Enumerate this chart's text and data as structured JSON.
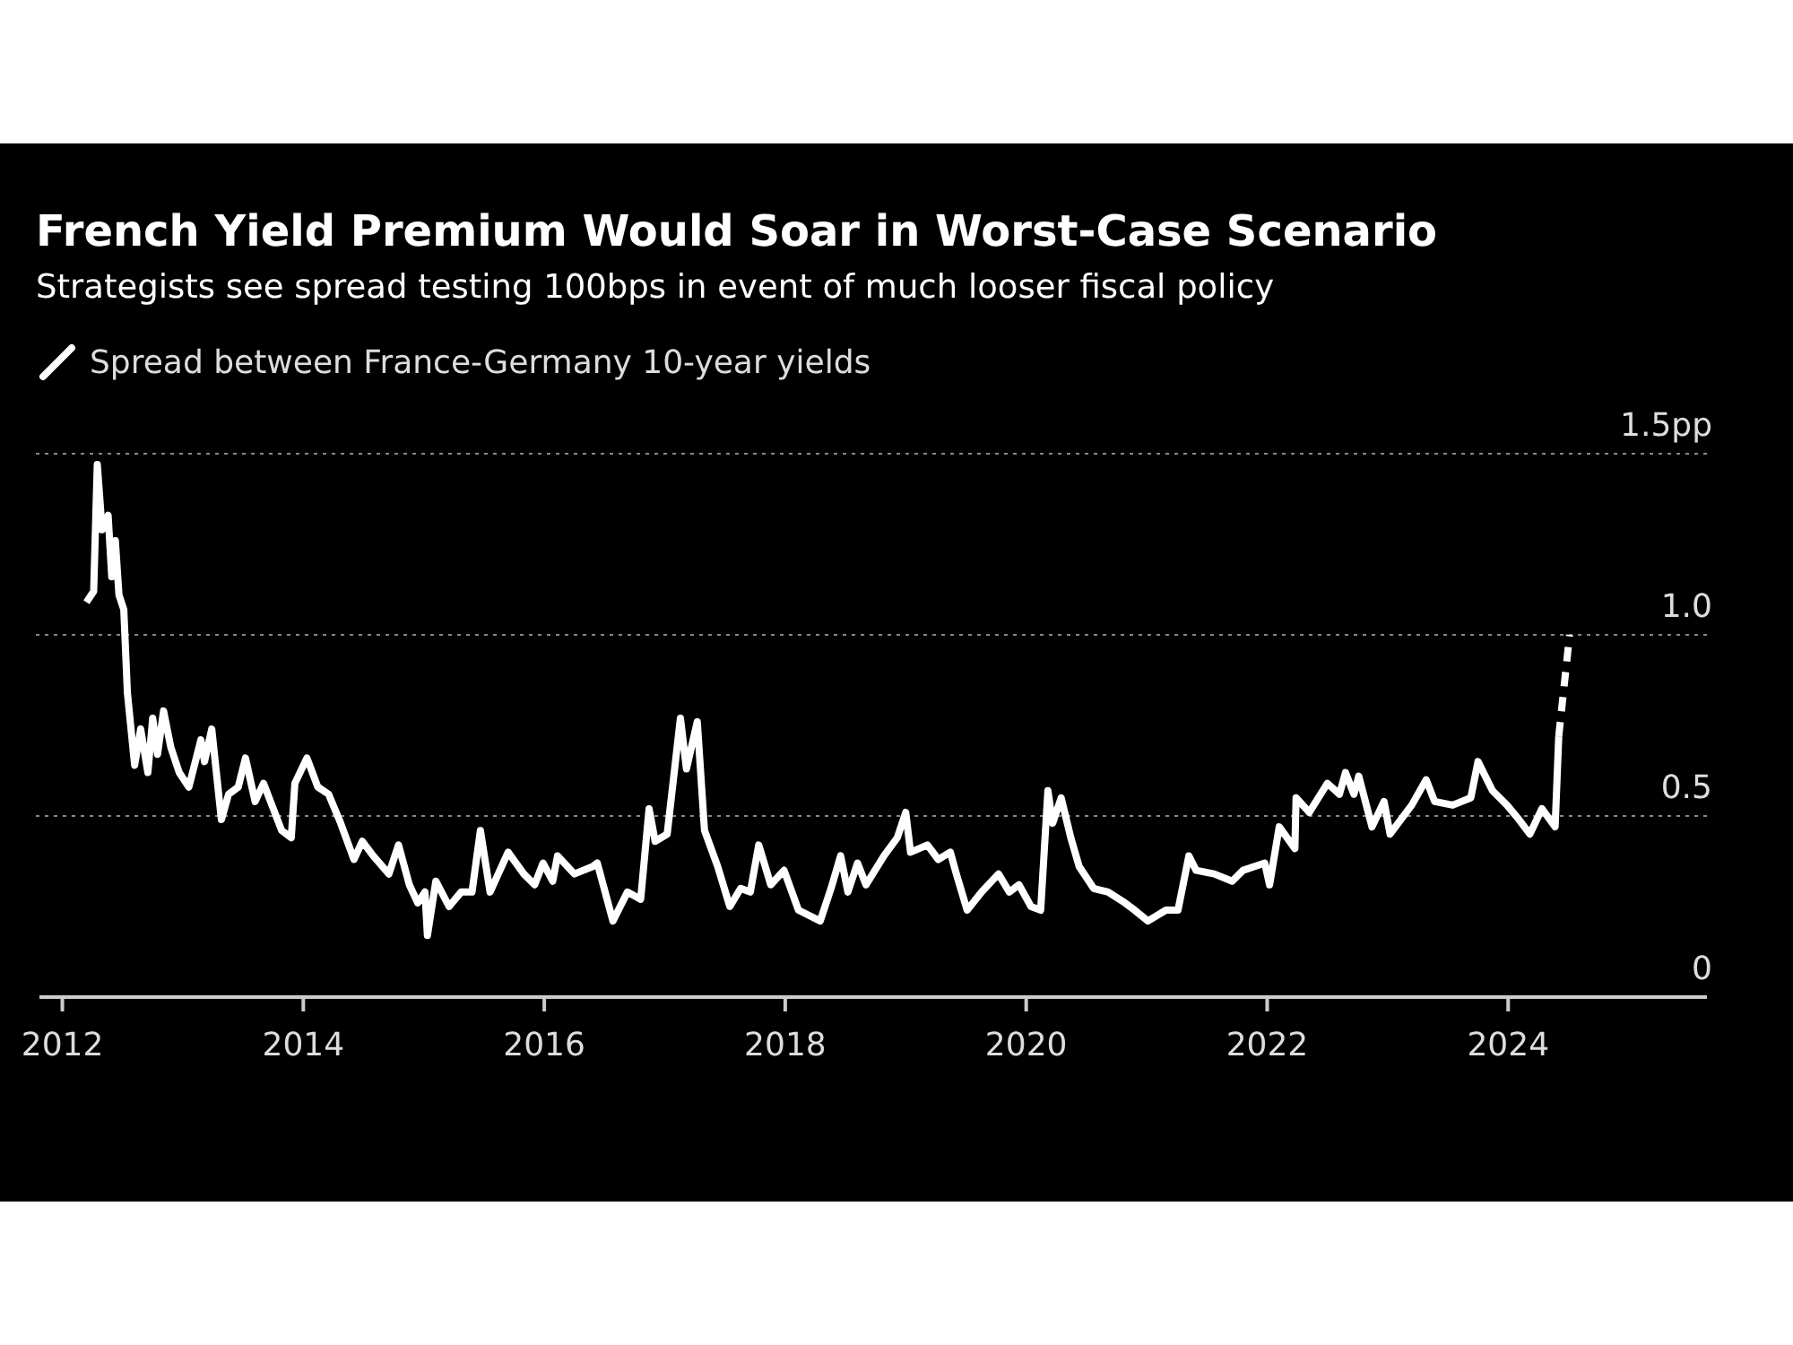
{
  "chart_data": {
    "type": "line",
    "title": "French Yield Premium Would Soar in Worst-Case Scenario",
    "subtitle": "Strategists see spread testing 100bps in event of much looser fiscal policy",
    "xlim": [
      2011.81,
      2025.65
    ],
    "xticks": [
      2012,
      2014,
      2016,
      2018,
      2020,
      2022,
      2024
    ],
    "ylim": [
      0,
      1.5
    ],
    "yticks": [
      0,
      0.5,
      {
        "value": 1,
        "label": "1.0"
      },
      {
        "value": 1.5,
        "label": "1.5pp"
      }
    ],
    "grid": "y",
    "legend": "top left",
    "series": [
      {
        "name": "Spread between France-Germany 10-year yields",
        "color": "#ffffff",
        "line_style": "solid",
        "x": [
          2012.2,
          2012.26,
          2012.29,
          2012.33,
          2012.38,
          2012.41,
          2012.44,
          2012.47,
          2012.51,
          2012.54,
          2012.6,
          2012.65,
          2012.71,
          2012.75,
          2012.79,
          2012.84,
          2012.9,
          2012.97,
          2013.05,
          2013.15,
          2013.18,
          2013.24,
          2013.32,
          2013.38,
          2013.46,
          2013.52,
          2013.6,
          2013.67,
          2013.82,
          2013.9,
          2013.93,
          2014.03,
          2014.12,
          2014.21,
          2014.31,
          2014.42,
          2014.49,
          2014.58,
          2014.71,
          2014.79,
          2014.88,
          2014.95,
          2015.01,
          2015.03,
          2015.1,
          2015.21,
          2015.31,
          2015.4,
          2015.47,
          2015.55,
          2015.7,
          2015.83,
          2015.92,
          2015.99,
          2016.07,
          2016.11,
          2016.25,
          2016.4,
          2016.44,
          2016.57,
          2016.69,
          2016.8,
          2016.87,
          2016.92,
          2017.02,
          2017.13,
          2017.18,
          2017.27,
          2017.33,
          2017.44,
          2017.54,
          2017.63,
          2017.71,
          2017.78,
          2017.88,
          2017.99,
          2018.11,
          2018.29,
          2018.38,
          2018.46,
          2018.52,
          2018.6,
          2018.67,
          2018.82,
          2018.93,
          2019.0,
          2019.04,
          2019.18,
          2019.27,
          2019.37,
          2019.42,
          2019.51,
          2019.63,
          2019.77,
          2019.86,
          2019.94,
          2020.04,
          2020.12,
          2020.18,
          2020.22,
          2020.29,
          2020.37,
          2020.44,
          2020.56,
          2020.68,
          2020.82,
          2020.9,
          2021.01,
          2021.16,
          2021.26,
          2021.35,
          2021.41,
          2021.56,
          2021.71,
          2021.8,
          2021.98,
          2022.02,
          2022.1,
          2022.23,
          2022.24,
          2022.35,
          2022.5,
          2022.6,
          2022.65,
          2022.72,
          2022.76,
          2022.87,
          2022.97,
          2023.02,
          2023.2,
          2023.32,
          2023.39,
          2023.54,
          2023.69,
          2023.75,
          2023.87,
          2023.99,
          2024.09,
          2024.18,
          2024.28,
          2024.39,
          2024.42
        ],
        "values": [
          1.09,
          1.12,
          1.47,
          1.29,
          1.33,
          1.16,
          1.26,
          1.11,
          1.07,
          0.84,
          0.64,
          0.74,
          0.62,
          0.77,
          0.67,
          0.79,
          0.69,
          0.62,
          0.58,
          0.71,
          0.65,
          0.74,
          0.49,
          0.56,
          0.58,
          0.66,
          0.54,
          0.59,
          0.46,
          0.44,
          0.59,
          0.66,
          0.58,
          0.56,
          0.48,
          0.38,
          0.43,
          0.39,
          0.34,
          0.42,
          0.31,
          0.26,
          0.29,
          0.17,
          0.32,
          0.25,
          0.29,
          0.29,
          0.46,
          0.29,
          0.4,
          0.34,
          0.31,
          0.37,
          0.32,
          0.39,
          0.34,
          0.36,
          0.37,
          0.21,
          0.29,
          0.27,
          0.52,
          0.43,
          0.45,
          0.77,
          0.63,
          0.76,
          0.46,
          0.36,
          0.25,
          0.3,
          0.29,
          0.42,
          0.31,
          0.35,
          0.24,
          0.21,
          0.3,
          0.39,
          0.29,
          0.37,
          0.31,
          0.39,
          0.44,
          0.51,
          0.4,
          0.42,
          0.38,
          0.4,
          0.34,
          0.24,
          0.29,
          0.34,
          0.29,
          0.31,
          0.25,
          0.24,
          0.57,
          0.48,
          0.55,
          0.44,
          0.36,
          0.3,
          0.29,
          0.26,
          0.24,
          0.21,
          0.24,
          0.24,
          0.39,
          0.35,
          0.34,
          0.32,
          0.35,
          0.37,
          0.31,
          0.47,
          0.41,
          0.55,
          0.51,
          0.59,
          0.56,
          0.62,
          0.56,
          0.61,
          0.47,
          0.54,
          0.45,
          0.53,
          0.6,
          0.54,
          0.53,
          0.55,
          0.65,
          0.57,
          0.53,
          0.49,
          0.45,
          0.52,
          0.47,
          0.72
        ]
      },
      {
        "color": "#ffffff",
        "line_style": "dashed",
        "x": [
          2024.42,
          2024.51
        ],
        "values": [
          0.72,
          1.0
        ]
      }
    ]
  }
}
